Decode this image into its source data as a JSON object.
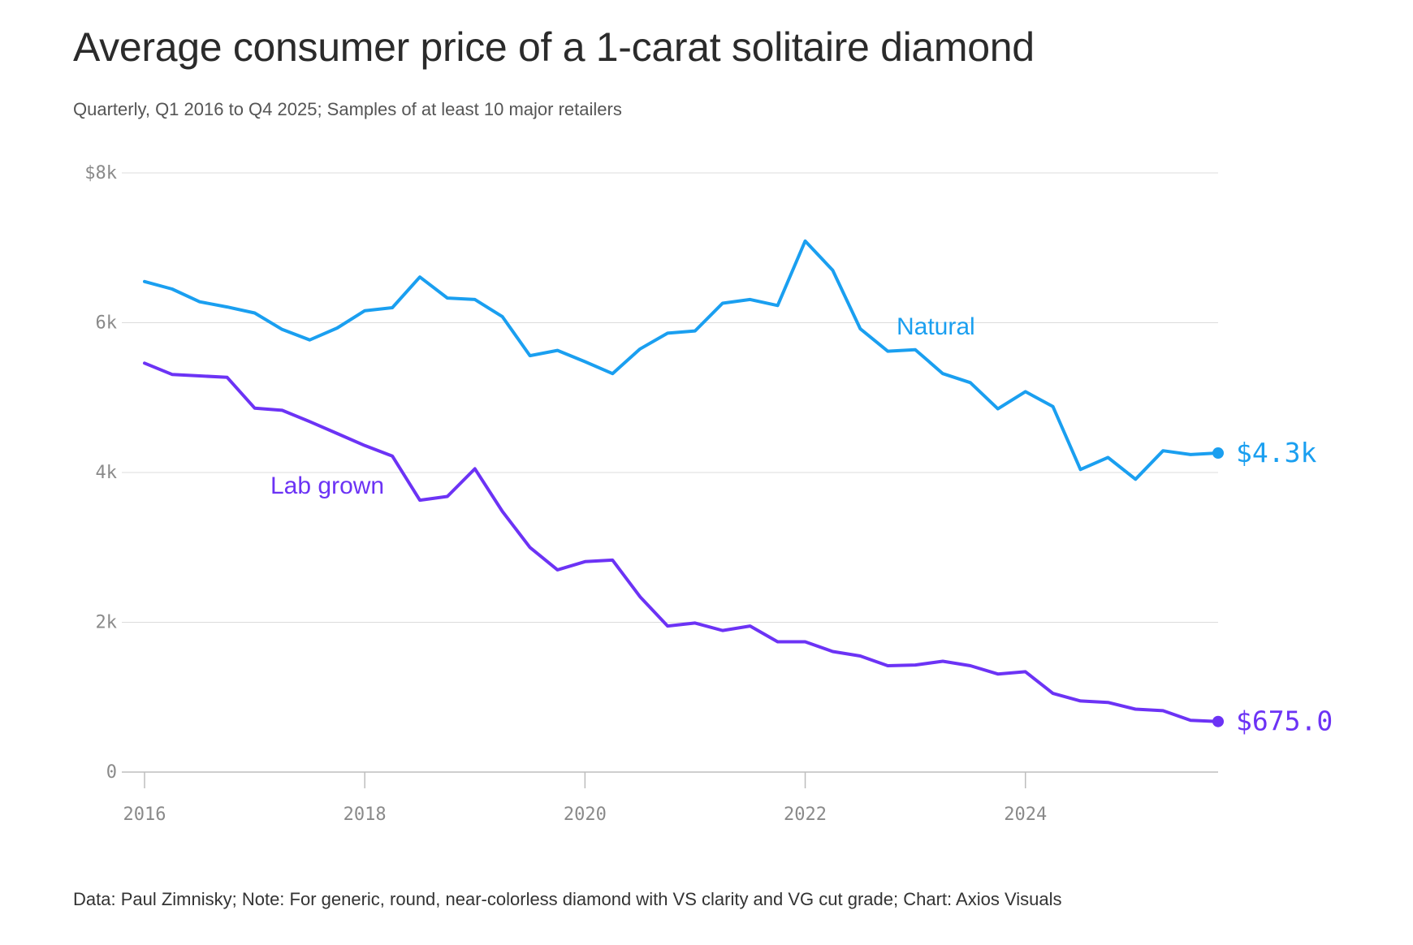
{
  "title": "Average consumer price of a 1-carat solitaire diamond",
  "subtitle": "Quarterly, Q1 2016 to Q4 2025; Samples of at least 10 major retailers",
  "footer": "Data: Paul Zimnisky; Note: For generic, round, near-colorless diamond with VS clarity and VG cut grade; Chart: Axios Visuals",
  "chart_data": {
    "type": "line",
    "title": "Average consumer price of a 1-carat solitaire diamond",
    "subtitle": "Quarterly, Q1 2016 to Q4 2025; Samples of at least 10 major retailers",
    "xlabel": "",
    "ylabel": "",
    "x_ticks": [
      "2016",
      "2018",
      "2020",
      "2022",
      "2024"
    ],
    "x_tick_values": [
      2016,
      2018,
      2020,
      2022,
      2024
    ],
    "xlim": [
      2016,
      2025.75
    ],
    "y_ticks": [
      "0",
      "2k",
      "4k",
      "6k",
      "$8k"
    ],
    "y_tick_values": [
      0,
      2000,
      4000,
      6000,
      8000
    ],
    "ylim": [
      0,
      8000
    ],
    "grid": true,
    "legend": "direct labels on lines",
    "x": [
      "2016 Q1",
      "2016 Q2",
      "2016 Q3",
      "2016 Q4",
      "2017 Q1",
      "2017 Q2",
      "2017 Q3",
      "2017 Q4",
      "2018 Q1",
      "2018 Q2",
      "2018 Q3",
      "2018 Q4",
      "2019 Q1",
      "2019 Q2",
      "2019 Q3",
      "2019 Q4",
      "2020 Q1",
      "2020 Q2",
      "2020 Q3",
      "2020 Q4",
      "2021 Q1",
      "2021 Q2",
      "2021 Q3",
      "2021 Q4",
      "2022 Q1",
      "2022 Q2",
      "2022 Q3",
      "2022 Q4",
      "2023 Q1",
      "2023 Q2",
      "2023 Q3",
      "2023 Q4",
      "2024 Q1",
      "2024 Q2",
      "2024 Q3",
      "2024 Q4",
      "2025 Q1",
      "2025 Q2",
      "2025 Q3",
      "2025 Q4"
    ],
    "series": [
      {
        "name": "Natural",
        "color": "#1a9ff0",
        "end_label": "$4.3k",
        "values": [
          6550,
          6450,
          6280,
          6210,
          6130,
          5910,
          5770,
          5930,
          6160,
          6200,
          6610,
          6330,
          6310,
          6080,
          5560,
          5630,
          5480,
          5320,
          5650,
          5860,
          5890,
          6260,
          6310,
          6230,
          7090,
          6700,
          5920,
          5620,
          5640,
          5320,
          5200,
          4850,
          5080,
          4880,
          4040,
          4200,
          3910,
          4290,
          4240,
          4260
        ]
      },
      {
        "name": "Lab grown",
        "color": "#6c33f5",
        "end_label": "$675.0",
        "values": [
          5460,
          5310,
          5290,
          5270,
          4860,
          4830,
          4680,
          4520,
          4360,
          4220,
          3630,
          3680,
          4050,
          3480,
          3000,
          2700,
          2810,
          2830,
          2340,
          1950,
          1990,
          1890,
          1950,
          1740,
          1740,
          1610,
          1550,
          1420,
          1430,
          1480,
          1420,
          1310,
          1340,
          1050,
          950,
          930,
          840,
          820,
          690,
          675
        ]
      }
    ]
  }
}
